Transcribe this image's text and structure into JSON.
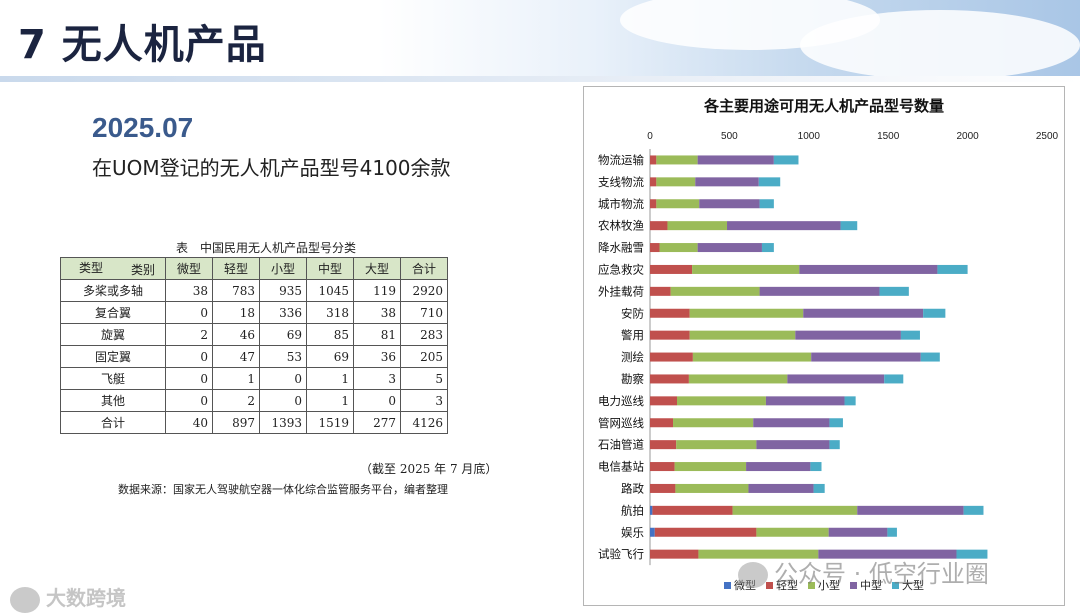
{
  "slide": {
    "title": "7 无人机产品",
    "date": "2025.07",
    "subtitle": "在UOM登记的无人机产品型号4100余款"
  },
  "table": {
    "caption": "表　中国民用无人机产品型号分类",
    "corner_top": "类别",
    "corner_bottom": "类型",
    "headers": [
      "微型",
      "轻型",
      "小型",
      "中型",
      "大型",
      "合计"
    ],
    "rows": [
      {
        "label": "多桨或多轴",
        "values": [
          "38",
          "783",
          "935",
          "1045",
          "119",
          "2920"
        ]
      },
      {
        "label": "复合翼",
        "values": [
          "0",
          "18",
          "336",
          "318",
          "38",
          "710"
        ]
      },
      {
        "label": "旋翼",
        "values": [
          "2",
          "46",
          "69",
          "85",
          "81",
          "283"
        ]
      },
      {
        "label": "固定翼",
        "values": [
          "0",
          "47",
          "53",
          "69",
          "36",
          "205"
        ]
      },
      {
        "label": "飞艇",
        "values": [
          "0",
          "1",
          "0",
          "1",
          "3",
          "5"
        ]
      },
      {
        "label": "其他",
        "values": [
          "0",
          "2",
          "0",
          "1",
          "0",
          "3"
        ]
      },
      {
        "label": "合计",
        "values": [
          "40",
          "897",
          "1393",
          "1519",
          "277",
          "4126"
        ]
      }
    ],
    "note": "（截至 2025 年 7 月底）",
    "source": "数据来源：国家无人驾驶航空器一体化综合监管服务平台，编者整理"
  },
  "watermarks": {
    "left": "大数跨境",
    "right": "公众号 · 低空行业圈"
  },
  "chart_data": {
    "type": "bar",
    "orientation": "horizontal",
    "stacked": true,
    "title": "各主要用途可用无人机产品型号数量",
    "xlim": [
      0,
      2500
    ],
    "xticks": [
      0,
      500,
      1000,
      1500,
      2000,
      2500
    ],
    "grid": false,
    "legend_position": "bottom",
    "categories": [
      "物流运输",
      "支线物流",
      "城市物流",
      "农林牧渔",
      "降水融雪",
      "应急救灾",
      "外挂载荷",
      "安防",
      "警用",
      "测绘",
      "勘察",
      "电力巡线",
      "管网巡线",
      "石油管道",
      "电信基站",
      "路政",
      "航拍",
      "娱乐",
      "试验飞行"
    ],
    "series": [
      {
        "name": "微型",
        "color": "#4472c4",
        "values": [
          0,
          0,
          0,
          0,
          0,
          0,
          0,
          0,
          0,
          0,
          0,
          0,
          0,
          0,
          0,
          0,
          15,
          30,
          0
        ]
      },
      {
        "name": "轻型",
        "color": "#c0504d",
        "values": [
          40,
          40,
          40,
          110,
          60,
          265,
          130,
          250,
          250,
          270,
          245,
          170,
          145,
          165,
          155,
          160,
          505,
          640,
          305
        ]
      },
      {
        "name": "小型",
        "color": "#9bbb59",
        "values": [
          260,
          245,
          270,
          375,
          240,
          675,
          560,
          715,
          665,
          745,
          620,
          560,
          505,
          505,
          450,
          460,
          785,
          455,
          755
        ]
      },
      {
        "name": "中型",
        "color": "#8064a2",
        "values": [
          480,
          400,
          380,
          715,
          405,
          870,
          755,
          755,
          665,
          690,
          610,
          495,
          480,
          460,
          405,
          410,
          670,
          370,
          870
        ]
      },
      {
        "name": "大型",
        "color": "#4bacc6",
        "values": [
          155,
          135,
          90,
          105,
          75,
          190,
          185,
          140,
          120,
          120,
          120,
          70,
          85,
          65,
          70,
          70,
          125,
          60,
          195
        ]
      }
    ]
  }
}
